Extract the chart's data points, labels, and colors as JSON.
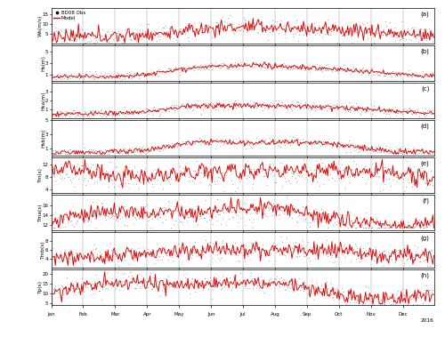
{
  "panels": [
    {
      "label": "(a)",
      "ylabel": "Ws(m/s)",
      "ylim": [
        0,
        18
      ],
      "yticks": [
        5,
        10,
        15
      ]
    },
    {
      "label": "(b)",
      "ylabel": "Hs(m)",
      "ylim": [
        0,
        6
      ],
      "yticks": [
        1,
        3,
        5
      ]
    },
    {
      "label": "(c)",
      "ylabel": "Hsa(m)",
      "ylim": [
        0,
        4
      ],
      "yticks": [
        1,
        2,
        3
      ]
    },
    {
      "label": "(d)",
      "ylabel": "Hsb(m)",
      "ylim": [
        0,
        5
      ],
      "yticks": [
        1,
        3,
        5
      ]
    },
    {
      "label": "(e)",
      "ylabel": "Tm(s)",
      "ylim": [
        3,
        14
      ],
      "yticks": [
        4,
        8,
        12
      ]
    },
    {
      "label": "(f)",
      "ylabel": "Tma(s)",
      "ylim": [
        11,
        18
      ],
      "yticks": [
        12,
        14,
        16
      ]
    },
    {
      "label": "(g)",
      "ylabel": "Tmb(s)",
      "ylim": [
        2,
        10
      ],
      "yticks": [
        4,
        6,
        8
      ]
    },
    {
      "label": "(h)",
      "ylabel": "Tp(s)",
      "ylim": [
        4,
        22
      ],
      "yticks": [
        5,
        10,
        15,
        20
      ]
    }
  ],
  "month_labels": [
    "Jan",
    "Feb",
    "Mar",
    "Apr",
    "May",
    "Jun",
    "Jul",
    "Aug",
    "Sep",
    "Oct",
    "Nov",
    "Dec"
  ],
  "year_label": "2016",
  "obs_color": "#111111",
  "model_color": "#dd0000",
  "legend_obs": "BD08 Obs",
  "legend_model": "Model",
  "n_points": 365
}
